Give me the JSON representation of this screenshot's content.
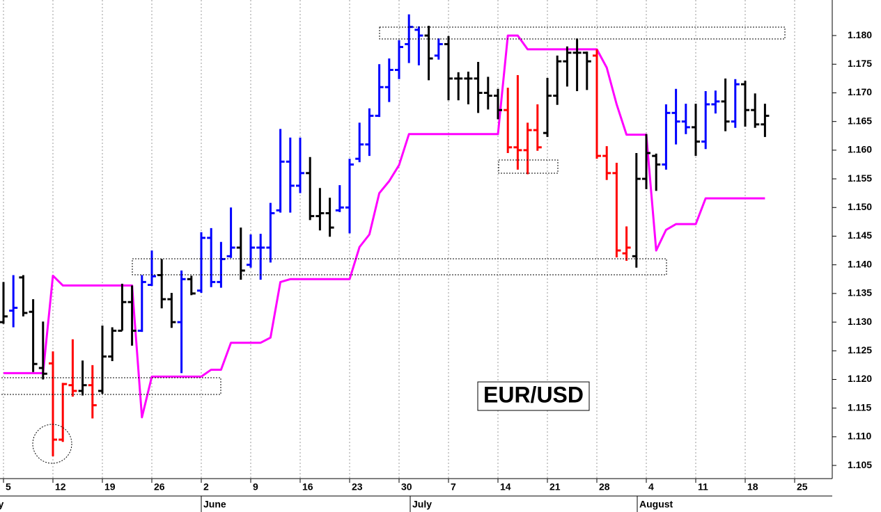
{
  "chart_data": {
    "type": "ohlc",
    "title": "EUR/USD",
    "categories": [
      "5",
      null,
      null,
      null,
      null,
      "12",
      null,
      null,
      null,
      null,
      "19",
      null,
      null,
      null,
      null,
      "26",
      null,
      null,
      null,
      null,
      "2",
      null,
      null,
      null,
      null,
      "9",
      null,
      null,
      null,
      null,
      "16",
      null,
      null,
      null,
      null,
      "23",
      null,
      null,
      null,
      null,
      "30",
      null,
      null,
      null,
      null,
      "7",
      null,
      null,
      null,
      null,
      "14",
      null,
      null,
      null,
      null,
      "21",
      null,
      null,
      null,
      null,
      "28",
      null,
      null,
      null,
      null,
      "4",
      null,
      null,
      null,
      null,
      "11",
      null,
      null,
      null,
      null,
      "18",
      null,
      null,
      null,
      null,
      "25"
    ],
    "month_labels": [
      "May",
      "June",
      "July",
      "August"
    ],
    "open": [
      1.13,
      1.132,
      1.1378,
      1.1318,
      1.122,
      1.1228,
      1.1095,
      1.119,
      1.118,
      1.119,
      1.118,
      1.124,
      1.1285,
      1.1335,
      1.1285,
      1.1365,
      1.1382,
      1.134,
      1.13,
      1.1375,
      1.1355,
      1.1447,
      1.137,
      1.1415,
      1.143,
      1.14,
      1.143,
      1.143,
      1.1495,
      1.158,
      1.1538,
      1.156,
      1.1485,
      1.149,
      1.1495,
      1.15,
      1.1585,
      1.161,
      1.166,
      1.171,
      1.174,
      1.1785,
      1.181,
      1.18,
      1.1765,
      1.1785,
      1.1725,
      1.1725,
      1.1725,
      1.17,
      1.1695,
      1.167,
      1.1605,
      1.16,
      1.1635,
      1.163,
      1.1695,
      1.1755,
      1.177,
      1.177,
      1.1765,
      1.159,
      1.156,
      1.142,
      1.1415,
      1.155,
      1.159,
      1.1575,
      1.1665,
      1.165,
      1.164,
      1.1615,
      1.168,
      1.1685,
      1.165,
      1.1715,
      1.167,
      1.1645,
      null,
      null,
      null
    ],
    "high": [
      1.137,
      1.1382,
      1.1382,
      1.134,
      1.1301,
      1.1249,
      1.1194,
      1.127,
      1.1233,
      1.1225,
      1.1294,
      1.1291,
      1.1367,
      1.1364,
      1.1382,
      1.1425,
      1.141,
      1.1351,
      1.139,
      1.1381,
      1.1457,
      1.1464,
      1.144,
      1.15,
      1.1465,
      1.1453,
      1.1454,
      1.1508,
      1.1637,
      1.1622,
      1.1622,
      1.1588,
      1.1534,
      1.1517,
      1.1539,
      1.1585,
      1.1648,
      1.1673,
      1.175,
      1.176,
      1.1792,
      1.1837,
      1.1816,
      1.1817,
      1.1795,
      1.1799,
      1.1736,
      1.1737,
      1.1754,
      1.1728,
      1.1707,
      1.1709,
      1.1731,
      1.1648,
      1.168,
      1.1726,
      1.1765,
      1.1781,
      1.1795,
      1.1772,
      1.1776,
      1.1607,
      1.1578,
      1.1467,
      1.1595,
      1.1628,
      1.1594,
      1.168,
      1.1707,
      1.1681,
      1.1681,
      1.1703,
      1.1704,
      1.1725,
      1.1724,
      1.1721,
      1.1699,
      1.1681,
      null,
      null,
      null
    ],
    "low": [
      1.1297,
      1.1291,
      1.131,
      1.1213,
      1.12,
      1.1066,
      1.1091,
      1.117,
      1.1172,
      1.1132,
      1.1175,
      1.1232,
      1.1285,
      1.1259,
      1.1283,
      1.1363,
      1.1324,
      1.129,
      1.1211,
      1.1347,
      1.1351,
      1.1361,
      1.136,
      1.1412,
      1.1374,
      1.1395,
      1.1374,
      1.1404,
      1.1491,
      1.1491,
      1.1525,
      1.1478,
      1.146,
      1.1449,
      1.1492,
      1.1455,
      1.1579,
      1.159,
      1.1658,
      1.1684,
      1.1724,
      1.1752,
      1.1748,
      1.1722,
      1.1758,
      1.1687,
      1.1687,
      1.168,
      1.1665,
      1.1671,
      1.1654,
      1.1595,
      1.1566,
      1.1558,
      1.1599,
      1.1623,
      1.1679,
      1.1711,
      1.1703,
      1.1705,
      1.1585,
      1.1548,
      1.1413,
      1.1407,
      1.1395,
      1.1532,
      1.1529,
      1.1566,
      1.161,
      1.1628,
      1.159,
      1.1602,
      1.1664,
      1.1633,
      1.1639,
      1.1641,
      1.1639,
      1.1623,
      null,
      null,
      null
    ],
    "close": [
      1.131,
      1.1325,
      1.1316,
      1.1227,
      1.121,
      1.1095,
      1.1192,
      1.118,
      1.119,
      1.1155,
      1.124,
      1.1285,
      1.1335,
      1.1285,
      1.137,
      1.138,
      1.134,
      1.13,
      1.1375,
      1.135,
      1.1447,
      1.137,
      1.141,
      1.143,
      1.139,
      1.143,
      1.143,
      1.149,
      1.158,
      1.1538,
      1.156,
      1.1485,
      1.149,
      1.1465,
      1.15,
      1.1575,
      1.161,
      1.166,
      1.171,
      1.174,
      1.178,
      1.1815,
      1.18,
      1.176,
      1.1785,
      1.1725,
      1.1725,
      1.1725,
      1.17,
      1.1695,
      1.167,
      1.1605,
      1.16,
      1.1635,
      1.1605,
      1.1695,
      1.1755,
      1.177,
      1.177,
      1.1755,
      1.159,
      1.156,
      1.1425,
      1.143,
      1.155,
      1.1595,
      1.1575,
      1.1665,
      1.165,
      1.164,
      1.1615,
      1.168,
      1.1685,
      1.165,
      1.1715,
      1.167,
      1.1645,
      1.166,
      null,
      null,
      null
    ],
    "bar_colors": [
      "#000000",
      "#0000ff",
      "#000000",
      "#000000",
      "#000000",
      "#ff0000",
      "#ff0000",
      "#ff0000",
      "#000000",
      "#ff0000",
      "#000000",
      "#000000",
      "#000000",
      "#000000",
      "#0000ff",
      "#0000ff",
      "#000000",
      "#000000",
      "#0000ff",
      "#000000",
      "#0000ff",
      "#0000ff",
      "#0000ff",
      "#0000ff",
      "#000000",
      "#0000ff",
      "#0000ff",
      "#0000ff",
      "#0000ff",
      "#0000ff",
      "#0000ff",
      "#000000",
      "#000000",
      "#000000",
      "#0000ff",
      "#0000ff",
      "#0000ff",
      "#0000ff",
      "#0000ff",
      "#0000ff",
      "#0000ff",
      "#0000ff",
      "#0000ff",
      "#000000",
      "#0000ff",
      "#000000",
      "#000000",
      "#000000",
      "#000000",
      "#000000",
      "#000000",
      "#ff0000",
      "#ff0000",
      "#ff0000",
      "#ff0000",
      "#000000",
      "#000000",
      "#000000",
      "#000000",
      "#000000",
      "#ff0000",
      "#ff0000",
      "#ff0000",
      "#ff0000",
      "#000000",
      "#000000",
      "#000000",
      "#0000ff",
      "#0000ff",
      "#0000ff",
      "#000000",
      "#0000ff",
      "#0000ff",
      "#000000",
      "#0000ff",
      "#000000",
      "#000000",
      "#000000",
      null,
      null,
      null
    ],
    "overlay": {
      "type": "line",
      "color": "#ff00ff",
      "values": [
        1.1211,
        1.1211,
        1.1211,
        1.1211,
        1.1211,
        1.1381,
        1.1364,
        1.1364,
        1.1364,
        1.1364,
        1.1364,
        1.1364,
        1.1364,
        1.1364,
        1.1134,
        1.1205,
        1.1205,
        1.1205,
        1.1205,
        1.1205,
        1.1205,
        1.1217,
        1.1217,
        1.1264,
        1.1264,
        1.1264,
        1.1264,
        1.1273,
        1.137,
        1.1375,
        1.1375,
        1.1375,
        1.1375,
        1.1375,
        1.1375,
        1.1375,
        1.1431,
        1.1453,
        1.1525,
        1.1546,
        1.1574,
        1.1628,
        1.1628,
        1.1628,
        1.1628,
        1.1628,
        1.1628,
        1.1628,
        1.1628,
        1.1628,
        1.1628,
        1.18,
        1.18,
        1.1776,
        1.1776,
        1.1776,
        1.1776,
        1.1776,
        1.1776,
        1.1776,
        1.1776,
        1.1744,
        1.168,
        1.1627,
        1.1627,
        1.1627,
        1.1425,
        1.1461,
        1.1471,
        1.1471,
        1.1471,
        1.1516,
        1.1516,
        1.1516,
        1.1516,
        1.1516,
        1.1516,
        1.1516,
        null,
        null,
        null
      ]
    },
    "ylim": [
      1.1027,
      1.1862
    ],
    "yticks": [
      1.105,
      {
        "value": 1.11,
        "label": "1.110"
      },
      1.115,
      {
        "value": 1.12,
        "label": "1.120"
      },
      1.125,
      {
        "value": 1.13,
        "label": "1.130"
      },
      1.135,
      {
        "value": 1.14,
        "label": "1.140"
      },
      1.145,
      {
        "value": 1.15,
        "label": "1.150"
      },
      1.155,
      {
        "value": 1.16,
        "label": "1.160"
      },
      1.165,
      {
        "value": 1.17,
        "label": "1.170"
      },
      1.175,
      {
        "value": 1.18,
        "label": "1.180"
      }
    ],
    "grid": true
  }
}
